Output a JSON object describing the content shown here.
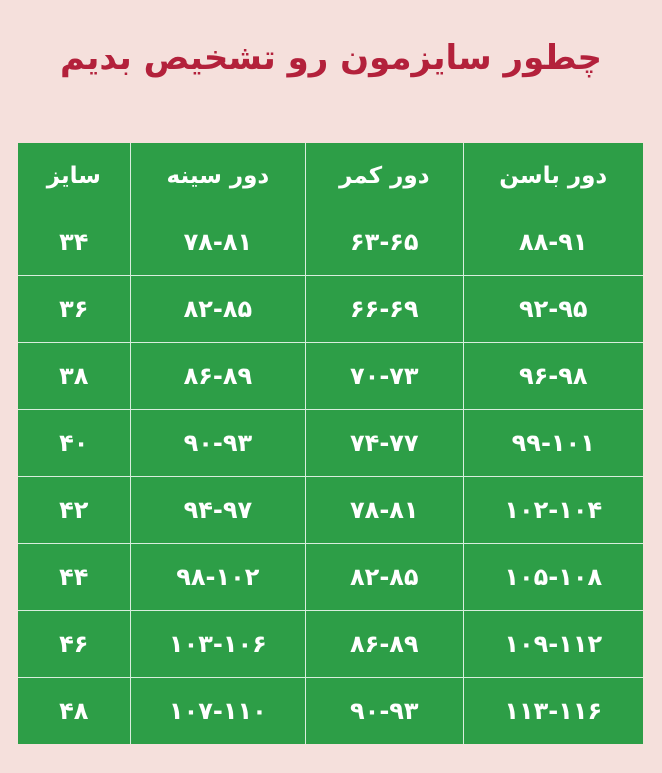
{
  "title": "چطور سایزمون رو تشخیص بدیم",
  "colors": {
    "background": "#f5e0dc",
    "title": "#b3213b",
    "table": "#2d9e47"
  },
  "table": {
    "headers": [
      "سایز",
      "دور سینه",
      "دور کمر",
      "دور باسن"
    ],
    "rows": [
      [
        "۳۴",
        "۷۸-۸۱",
        "۶۳-۶۵",
        "۸۸-۹۱"
      ],
      [
        "۳۶",
        "۸۲-۸۵",
        "۶۶-۶۹",
        "۹۲-۹۵"
      ],
      [
        "۳۸",
        "۸۶-۸۹",
        "۷۰-۷۳",
        "۹۶-۹۸"
      ],
      [
        "۴۰",
        "۹۰-۹۳",
        "۷۴-۷۷",
        "۹۹-۱۰۱"
      ],
      [
        "۴۲",
        "۹۴-۹۷",
        "۷۸-۸۱",
        "۱۰۲-۱۰۴"
      ],
      [
        "۴۴",
        "۹۸-۱۰۲",
        "۸۲-۸۵",
        "۱۰۵-۱۰۸"
      ],
      [
        "۴۶",
        "۱۰۳-۱۰۶",
        "۸۶-۸۹",
        "۱۰۹-۱۱۲"
      ],
      [
        "۴۸",
        "۱۰۷-۱۱۰",
        "۹۰-۹۳",
        "۱۱۳-۱۱۶"
      ]
    ]
  }
}
